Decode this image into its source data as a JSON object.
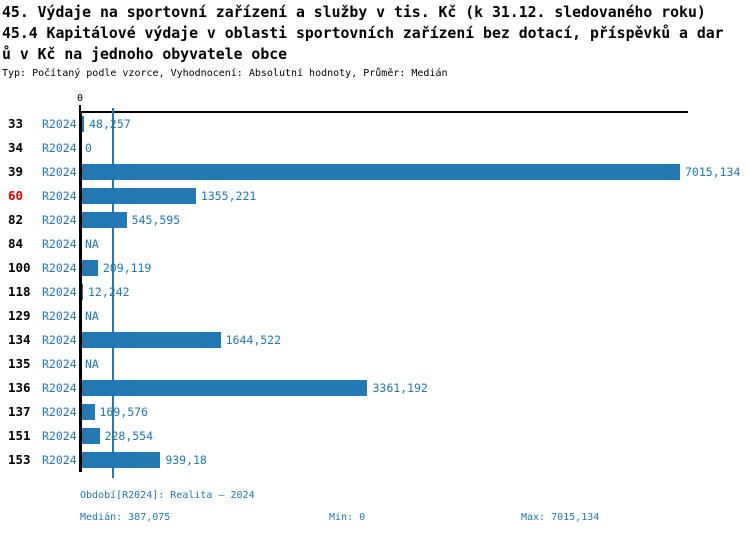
{
  "header": {
    "title_line1": "45. Výdaje na sportovní zařízení a služby v tis. Kč (k 31.12. sledovaného roku)",
    "title_line2": "45.4 Kapitálové výdaje v oblasti sportovních zařízení bez dotací, příspěvků a dar",
    "title_line3": "ů v Kč na jednoho obyvatele obce",
    "meta_line": "Typ: Počítaný podle vzorce, Vyhodnocení: Absolutní hodnoty, Průměr: Medián"
  },
  "chart_data": {
    "type": "bar",
    "orientation": "horizontal",
    "title": "45. Výdaje na sportovní zařízení a služby v tis. Kč (k 31.12. sledovaného roku)",
    "subtitle": "45.4 Kapitálové výdaje v oblasti sportovních zařízení bez dotací, příspěvků a darů v Kč na jednoho obyvatele obce",
    "axis_tick_label": "0",
    "xlim": [
      0,
      7015.134
    ],
    "period_label": "R2024",
    "categories": [
      "33",
      "34",
      "39",
      "60",
      "82",
      "84",
      "100",
      "118",
      "129",
      "134",
      "135",
      "136",
      "137",
      "151",
      "153"
    ],
    "highlighted_category": "60",
    "values": [
      48.257,
      0,
      7015.134,
      1355.221,
      545.595,
      null,
      209.119,
      12.242,
      null,
      1644.522,
      null,
      3361.192,
      169.576,
      228.554,
      939.18
    ],
    "value_labels": [
      "48,257",
      "0",
      "7015,134",
      "1355,221",
      "545,595",
      "NA",
      "209,119",
      "12,242",
      "NA",
      "1644,522",
      "NA",
      "3361,192",
      "169,576",
      "228,554",
      "939,18"
    ],
    "median_value": 387.075,
    "grid": false,
    "legend": "none",
    "colors": {
      "bar": "#2478b4",
      "blue_text": "#2277b2",
      "highlight_red": "#e00000",
      "axis": "#000000"
    }
  },
  "footer": {
    "period_line": "Období[R2024]: Realita – 2024",
    "median_label": "Medián: 387,075",
    "min_label": "Min: 0",
    "max_label": "Max: 7015,134"
  }
}
